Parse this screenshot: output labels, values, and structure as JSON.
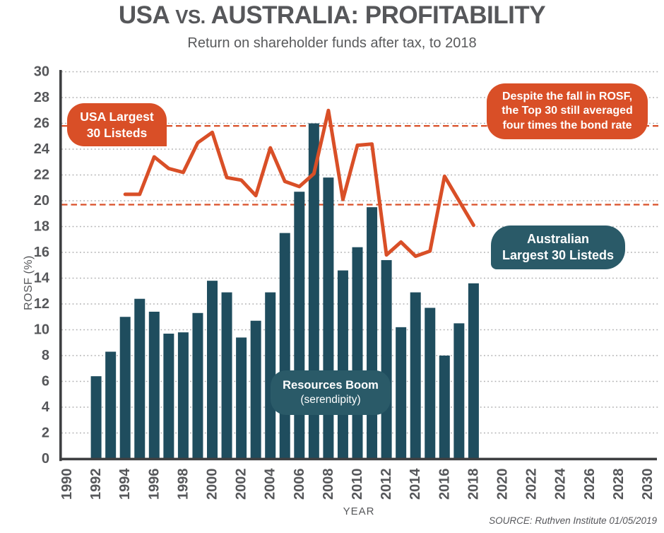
{
  "colors": {
    "bar_teal": "#1F4D5E",
    "box_teal": "#2A5A68",
    "accent_orange": "#D94F27",
    "title_gray": "#56575A",
    "tick_gray": "#56575A",
    "grid_gray": "#B0B0B1",
    "axis_dark": "#3E3F41"
  },
  "title": {
    "part1": "USA ",
    "vs": "vs.",
    "part2": " AUSTRALIA: PROFITABILITY"
  },
  "subtitle": "Return on shareholder funds after tax, to 2018",
  "axis_titles": {
    "y": "ROSF (%)",
    "x": "YEAR"
  },
  "source": "SOURCE: Ruthven Institute 01/05/2019",
  "annotations": {
    "usa_label": {
      "line1": "USA Largest",
      "line2": "30 Listeds"
    },
    "aus_label": {
      "line1": "Australian",
      "line2": "Largest 30 Listeds"
    },
    "bond_note": {
      "line1": "Despite the fall in ROSF,",
      "line2": "the Top 30 still averaged",
      "line3": "four times the bond rate"
    },
    "resources": {
      "line1": "Resources Boom",
      "line2": "(serendipity)"
    }
  },
  "chart_data": {
    "type": "bar+line",
    "title": "USA vs. AUSTRALIA: PROFITABILITY",
    "subtitle": "Return on shareholder funds after tax, to 2018",
    "xlabel": "YEAR",
    "ylabel": "ROSF (%)",
    "xlim": [
      1990,
      2030
    ],
    "ylim": [
      0,
      30
    ],
    "x_ticks": [
      1990,
      1992,
      1994,
      1996,
      1998,
      2000,
      2002,
      2004,
      2006,
      2008,
      2010,
      2012,
      2014,
      2016,
      2018,
      2020,
      2022,
      2024,
      2026,
      2028,
      2030
    ],
    "y_ticks": [
      0,
      2,
      4,
      6,
      8,
      10,
      12,
      14,
      16,
      18,
      20,
      22,
      24,
      26,
      28,
      30
    ],
    "grid": "horizontal-dotted",
    "legend_position": "on-chart-badges",
    "reference_lines": {
      "style": "orange-dashed",
      "values": [
        25.8,
        19.7
      ],
      "meaning": "four times the bond rate band"
    },
    "series": [
      {
        "name": "Australian Largest 30 Listeds",
        "type": "bar",
        "color": "#1F4D5E",
        "x": [
          1992,
          1993,
          1994,
          1995,
          1996,
          1997,
          1998,
          1999,
          2000,
          2001,
          2002,
          2003,
          2004,
          2005,
          2006,
          2007,
          2008,
          2009,
          2010,
          2011,
          2012,
          2013,
          2014,
          2015,
          2016,
          2017,
          2018
        ],
        "values": [
          6.4,
          8.3,
          11.0,
          12.4,
          11.4,
          9.7,
          9.8,
          11.3,
          13.8,
          12.9,
          9.4,
          10.7,
          12.9,
          17.5,
          20.7,
          26.0,
          21.8,
          14.6,
          16.4,
          19.5,
          15.4,
          10.2,
          12.9,
          11.7,
          8.0,
          10.5,
          13.6
        ]
      },
      {
        "name": "USA Largest 30 Listeds",
        "type": "line",
        "color": "#D94F27",
        "x": [
          1994,
          1995,
          1996,
          1997,
          1998,
          1999,
          2000,
          2001,
          2002,
          2003,
          2004,
          2005,
          2006,
          2007,
          2008,
          2009,
          2010,
          2011,
          2012,
          2013,
          2014,
          2015,
          2016,
          2017,
          2018
        ],
        "values": [
          20.5,
          20.5,
          23.4,
          22.5,
          22.2,
          24.5,
          25.3,
          21.8,
          21.6,
          20.4,
          24.1,
          21.5,
          21.1,
          22.1,
          27.0,
          20.1,
          24.3,
          24.4,
          15.8,
          16.8,
          15.7,
          16.1,
          21.9,
          20.0,
          18.1
        ]
      }
    ]
  }
}
